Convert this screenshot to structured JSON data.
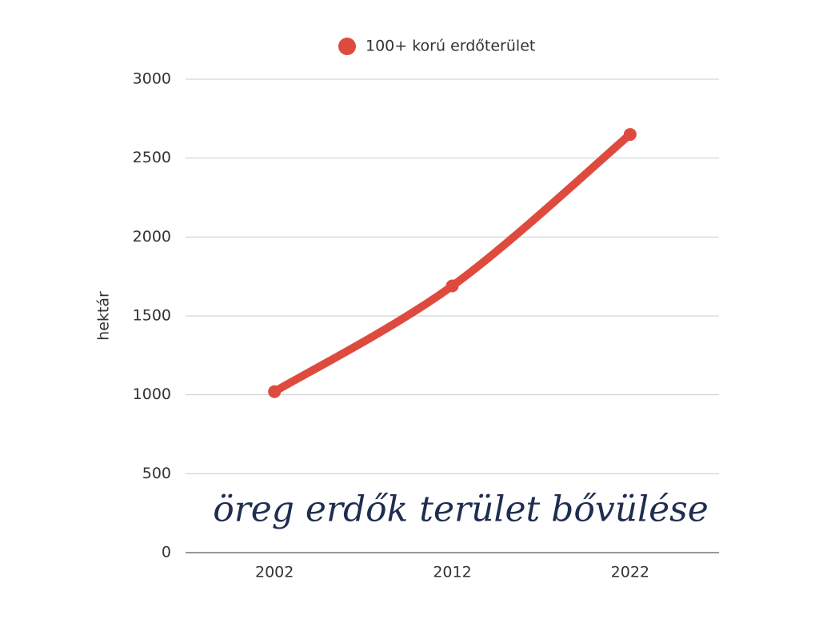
{
  "chart_data": {
    "type": "line",
    "title": "öreg erdők terület bővülése",
    "y_label": "hektár",
    "categories": [
      "2002",
      "2012",
      "2022"
    ],
    "series": [
      {
        "name": "100+ korú erdőterület",
        "color": "#de4b3e",
        "values": [
          1020,
          1690,
          2650
        ]
      }
    ],
    "ylim": [
      0,
      3000
    ],
    "yticks": [
      0,
      500,
      1000,
      1500,
      2000,
      2500,
      3000
    ],
    "grid": true,
    "legend": "top"
  }
}
